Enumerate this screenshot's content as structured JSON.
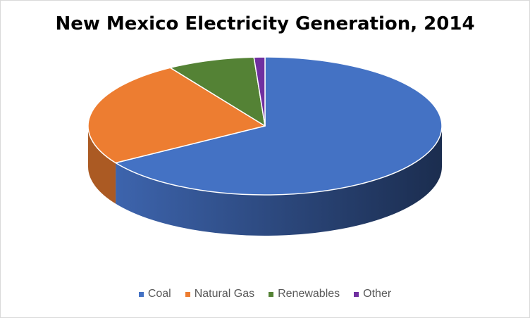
{
  "chart_data": {
    "type": "pie",
    "title": "New Mexico Electricity Generation, 2014",
    "categories": [
      "Coal",
      "Natural Gas",
      "Renewables",
      "Other"
    ],
    "values": [
      66,
      25,
      8,
      1
    ],
    "colors": [
      "#4472C4",
      "#ED7D31",
      "#548235",
      "#7030A0"
    ],
    "legend_position": "bottom",
    "style": "3-D pie"
  }
}
